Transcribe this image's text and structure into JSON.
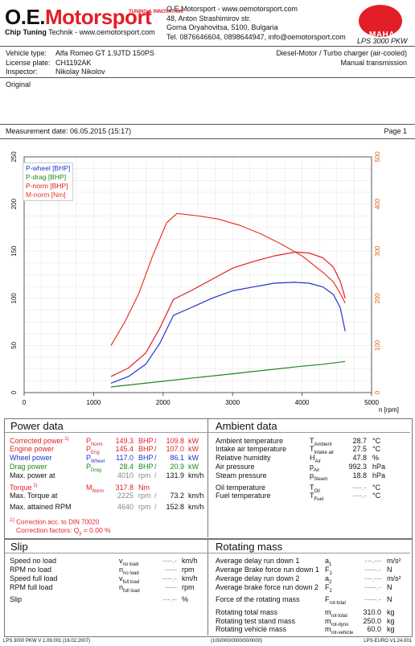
{
  "header": {
    "logo_main_a": "O.E.",
    "logo_main_b": "Motorsport",
    "logo_sub": "TUNING & INNOVATION",
    "tagline_bold": "Chip Tuning",
    "tagline_rest": " Technik - www.oemotorsport.com",
    "company_lines": [
      "O.E.Motorsport - www.oemotorsport.com",
      "48, Anton Strashimirov str.",
      "Gorna Oryahovitsa, 5100, Bulgaria",
      "Tel. 0876646604, 0898644947, info@oemotorsport.com"
    ],
    "maha_label": "MAHA",
    "lps_label": "LPS 3000 PKW"
  },
  "vehicle": {
    "type_label": "Vehicle type:",
    "type_value": "Alfa Romeo GT 1.9JTD 150PS",
    "plate_label": "License plate:",
    "plate_value": "CH1192AK",
    "inspector_label": "Inspector:",
    "inspector_value": "Nikolay Nikolov",
    "engine_desc": "Diesel-Motor / Turbo charger (air-cooled)",
    "transmission": "Manual transmission",
    "original": "Original"
  },
  "measurement": {
    "date_text": "Measurement date: 06.05.2015 (15:17)",
    "page_text": "Page 1"
  },
  "chart_data": {
    "type": "line",
    "xlabel": "n [rpm]",
    "xlim": [
      0,
      5000
    ],
    "ylim_left": [
      0,
      250
    ],
    "ylim_right": [
      0,
      500
    ],
    "x_ticks": [
      0,
      1000,
      2000,
      3000,
      4000,
      5000
    ],
    "y_ticks_left": [
      0,
      50,
      100,
      150,
      200,
      250
    ],
    "y_ticks_right": [
      0,
      100,
      200,
      300,
      400,
      500
    ],
    "grid": true,
    "legend_position": "top-left",
    "series": [
      {
        "name": "P-wheel [BHP]",
        "color": "#2233cc",
        "axis": "left",
        "x": [
          1250,
          1500,
          1750,
          1950,
          2150,
          2400,
          2700,
          3000,
          3300,
          3600,
          3900,
          4100,
          4300,
          4450,
          4550,
          4620
        ],
        "y": [
          10,
          17,
          30,
          52,
          82,
          90,
          100,
          108,
          112,
          116,
          117,
          116,
          112,
          104,
          90,
          65
        ]
      },
      {
        "name": "P-drag [BHP]",
        "color": "#1a8a1a",
        "axis": "left",
        "x": [
          1250,
          1500,
          2000,
          2500,
          3000,
          3500,
          4000,
          4300,
          4620
        ],
        "y": [
          6,
          8,
          12,
          16,
          20,
          24,
          28,
          30,
          33
        ]
      },
      {
        "name": "P-norm [BHP]",
        "color": "#e21f26",
        "axis": "left",
        "x": [
          1250,
          1500,
          1750,
          1950,
          2150,
          2400,
          2700,
          3000,
          3300,
          3600,
          3900,
          4100,
          4300,
          4450,
          4550,
          4620
        ],
        "y": [
          17,
          26,
          42,
          68,
          99,
          108,
          120,
          132,
          139,
          145,
          149,
          148,
          143,
          133,
          118,
          100
        ]
      },
      {
        "name": "M-norm [Nm]",
        "color": "#ee3322",
        "axis": "right",
        "x": [
          1250,
          1450,
          1650,
          1850,
          2050,
          2200,
          2500,
          2800,
          3100,
          3400,
          3700,
          4000,
          4300,
          4450,
          4550,
          4620
        ],
        "y": [
          100,
          150,
          210,
          290,
          360,
          380,
          375,
          368,
          355,
          337,
          315,
          290,
          255,
          235,
          210,
          190
        ]
      }
    ]
  },
  "power": {
    "title": "Power data",
    "rows": [
      {
        "label": "Corrected power",
        "sup": "1)",
        "sym": "P",
        "sub": "Norm",
        "v1": "149.3",
        "u1": "BHP",
        "v2": "109.8",
        "u2": "kW",
        "color": "red"
      },
      {
        "label": "Engine power",
        "sup": "",
        "sym": "P",
        "sub": "Eng",
        "v1": "145.4",
        "u1": "BHP",
        "v2": "107.0",
        "u2": "kW",
        "color": "red"
      },
      {
        "label": "Wheel power",
        "sup": "",
        "sym": "P",
        "sub": "Wheel",
        "v1": "117.0",
        "u1": "BHP",
        "v2": "86.1",
        "u2": "kW",
        "color": "blue"
      },
      {
        "label": "Drag power",
        "sup": "",
        "sym": "P",
        "sub": "Drag",
        "v1": "28.4",
        "u1": "BHP",
        "v2": "20.9",
        "u2": "kW",
        "color": "green"
      },
      {
        "label": "Max. power at",
        "sup": "",
        "sym": "",
        "sub": "",
        "v1": "4010",
        "u1": "rpm",
        "v2": "131.9",
        "u2": "km/h",
        "color": "dark"
      },
      {
        "label": "Torque",
        "sup": "1)",
        "sym": "M",
        "sub": "Norm",
        "v1": "317.8",
        "u1": "Nm",
        "v2": "",
        "u2": "",
        "color": "red"
      },
      {
        "label": "Max. Torque at",
        "sup": "",
        "sym": "",
        "sub": "",
        "v1": "2225",
        "u1": "rpm",
        "v2": "73.2",
        "u2": "km/h",
        "color": "dark"
      },
      {
        "label": "Max. attained RPM",
        "sup": "",
        "sym": "",
        "sub": "",
        "v1": "4640",
        "u1": "rpm",
        "v2": "152.8",
        "u2": "km/h",
        "color": "dark"
      }
    ],
    "correction1": "Correction acc. to DIN 70020",
    "correction1_mark": "1)",
    "correction2": "Correction factors:  Q",
    "correction2_sub": "y",
    "correction2_val": "=   0.00 %"
  },
  "ambient": {
    "title": "Ambient data",
    "rows": [
      {
        "label": "Ambient temperature",
        "sym": "T",
        "sub": "Ambient",
        "val": "28.7",
        "unit": "°C"
      },
      {
        "label": "Intake air temperature",
        "sym": "T",
        "sub": "Intake air",
        "val": "27.5",
        "unit": "°C"
      },
      {
        "label": "Relative humidity",
        "sym": "H",
        "sub": "Air",
        "val": "47.8",
        "unit": "%"
      },
      {
        "label": "Air pressure",
        "sym": "p",
        "sub": "Air",
        "val": "992.3",
        "unit": "hPa"
      },
      {
        "label": "Steam pressure",
        "sym": "p",
        "sub": "Steam",
        "val": "18.8",
        "unit": "hPa"
      },
      {
        "label": "Oil temperature",
        "sym": "T",
        "sub": "Oil",
        "val": "----.-",
        "unit": "°C"
      },
      {
        "label": "Fuel temperature",
        "sym": "T",
        "sub": "Fuel",
        "val": "----.-",
        "unit": "°C"
      }
    ]
  },
  "slip": {
    "title": "Slip",
    "rows": [
      {
        "label": "Speed no load",
        "sym": "v",
        "sub": "no load",
        "val": "----.-",
        "unit": "km/h"
      },
      {
        "label": "RPM no load",
        "sym": "n",
        "sub": "no load",
        "val": "-----",
        "unit": "rpm"
      },
      {
        "label": "Speed full load",
        "sym": "v",
        "sub": "full load",
        "val": "----.-",
        "unit": "km/h"
      },
      {
        "label": "RPM full load",
        "sym": "n",
        "sub": "full load",
        "val": "-----",
        "unit": "rpm"
      },
      {
        "label": "Slip",
        "sym": "",
        "sub": "",
        "val": "---.--",
        "unit": "%"
      }
    ]
  },
  "rotating": {
    "title": "Rotating mass",
    "rows": [
      {
        "label": "Average delay run down 1",
        "sym": "a",
        "sub": "1",
        "val": "---.---",
        "unit": "m/s²"
      },
      {
        "label": "Average Brake force run down 1",
        "sym": "F",
        "sub": "1",
        "val": "-----.-",
        "unit": "N"
      },
      {
        "label": "Average delay run down 2",
        "sym": "a",
        "sub": "2",
        "val": "---.---",
        "unit": "m/s²"
      },
      {
        "label": "Average brake force run down 2",
        "sym": "F",
        "sub": "2",
        "val": "-----.-",
        "unit": "N"
      },
      {
        "label": "Force of the rotating mass",
        "sym": "F",
        "sub": "rot-total",
        "val": "-----.-",
        "unit": "N"
      },
      {
        "label": "Rotating total mass",
        "sym": "m",
        "sub": "rot-total",
        "val": "310.0",
        "unit": "kg"
      },
      {
        "label": "Rotating test stand mass",
        "sym": "m",
        "sub": "rot-dyno",
        "val": "250.0",
        "unit": "kg"
      },
      {
        "label": "Rotating vehicle mass",
        "sym": "m",
        "sub": "rot-vehicle",
        "val": "60.0",
        "unit": "kg"
      }
    ]
  },
  "footer": {
    "left": "LPS 3000 PKW V 1.09.001 (16.02.2007)",
    "middle": "(100/000/0000/00/0000)",
    "right": "LPS-EURO V1.24.001"
  }
}
